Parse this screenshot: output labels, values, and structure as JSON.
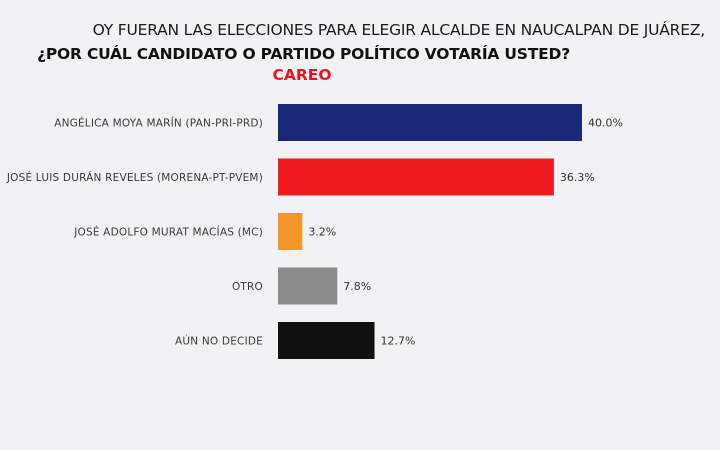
{
  "chart_data": {
    "type": "bar",
    "orientation": "horizontal",
    "title_line1": "OY FUERAN LAS ELECCIONES PARA ELEGIR ALCALDE EN NAUCALPAN DE JUÁREZ,",
    "title_line2": "¿POR CUÁL CANDIDATO O PARTIDO POLÍTICO VOTARÍA USTED?",
    "subtitle": "CAREO",
    "categories": [
      "ANGÉLICA MOYA MARÍN (PAN-PRI-PRD)",
      "JOSÉ LUIS DURÁN REVELES (MORENA-PT-PVEM)",
      "JOSÉ ADOLFO MURAT MACÍAS (MC)",
      "OTRO",
      "AÚN NO DECIDE"
    ],
    "values": [
      40.0,
      36.3,
      3.2,
      7.8,
      12.7
    ],
    "value_labels": [
      "40.0%",
      "36.3%",
      "3.2%",
      "7.8%",
      "12.7%"
    ],
    "colors": [
      "#1b2a78",
      "#f01a20",
      "#f5962a",
      "#8a8a8a",
      "#101010"
    ],
    "xlim": [
      0,
      40
    ],
    "grid": false,
    "legend": "none"
  },
  "colors": {
    "subtitle": "#e8151b",
    "background": "#f2f2f4"
  }
}
